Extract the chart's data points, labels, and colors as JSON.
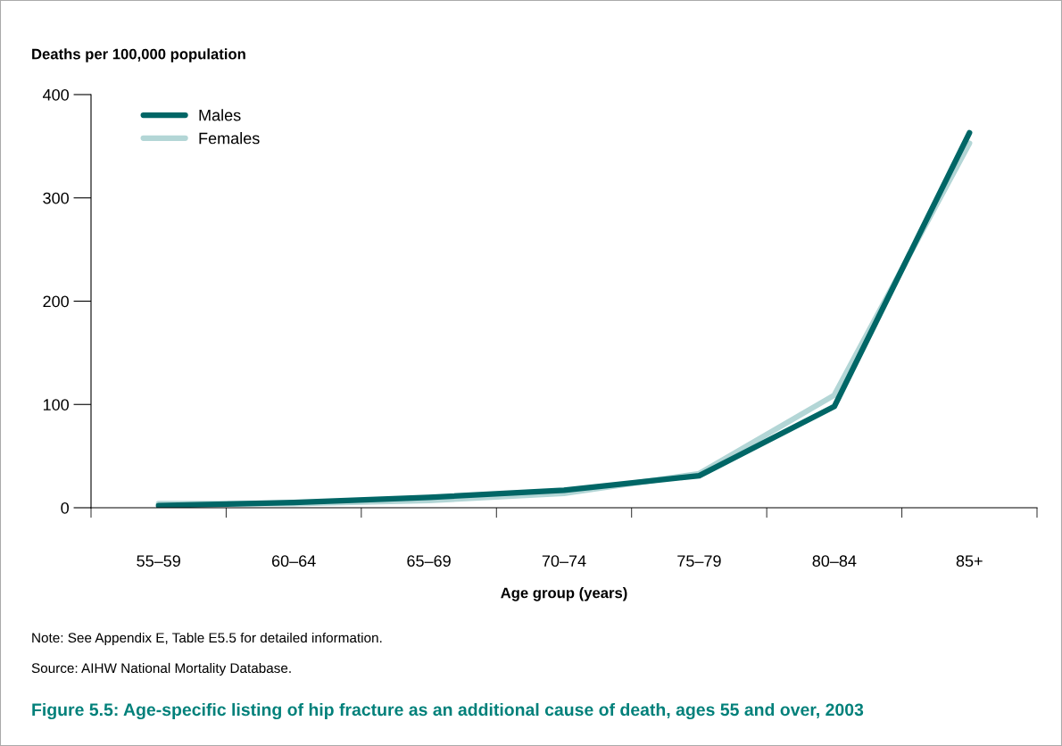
{
  "chart_data": {
    "type": "line",
    "title": "Figure 5.5: Age-specific listing of hip fracture as an additional cause of death, ages 55 and over, 2003",
    "xlabel": "Age group (years)",
    "ylabel": "Deaths per 100,000 population",
    "categories": [
      "55–59",
      "60–64",
      "65–69",
      "70–74",
      "75–79",
      "80–84",
      "85+"
    ],
    "series": [
      {
        "name": "Males",
        "color": "#006666",
        "values": [
          2,
          5,
          10,
          17,
          31,
          98,
          363
        ]
      },
      {
        "name": "Females",
        "color": "#b3d6d6",
        "values": [
          4,
          4,
          7,
          14,
          33,
          109,
          353
        ]
      }
    ],
    "ylim": [
      0,
      400
    ],
    "yticks": [
      0,
      100,
      200,
      300,
      400
    ],
    "grid": false,
    "legend": "top left",
    "line_style": "solid",
    "marker": "none",
    "annotations": [
      "Note: See Appendix E, Table E5.5 for detailed information.",
      "Source: AIHW National Mortality Database."
    ]
  }
}
